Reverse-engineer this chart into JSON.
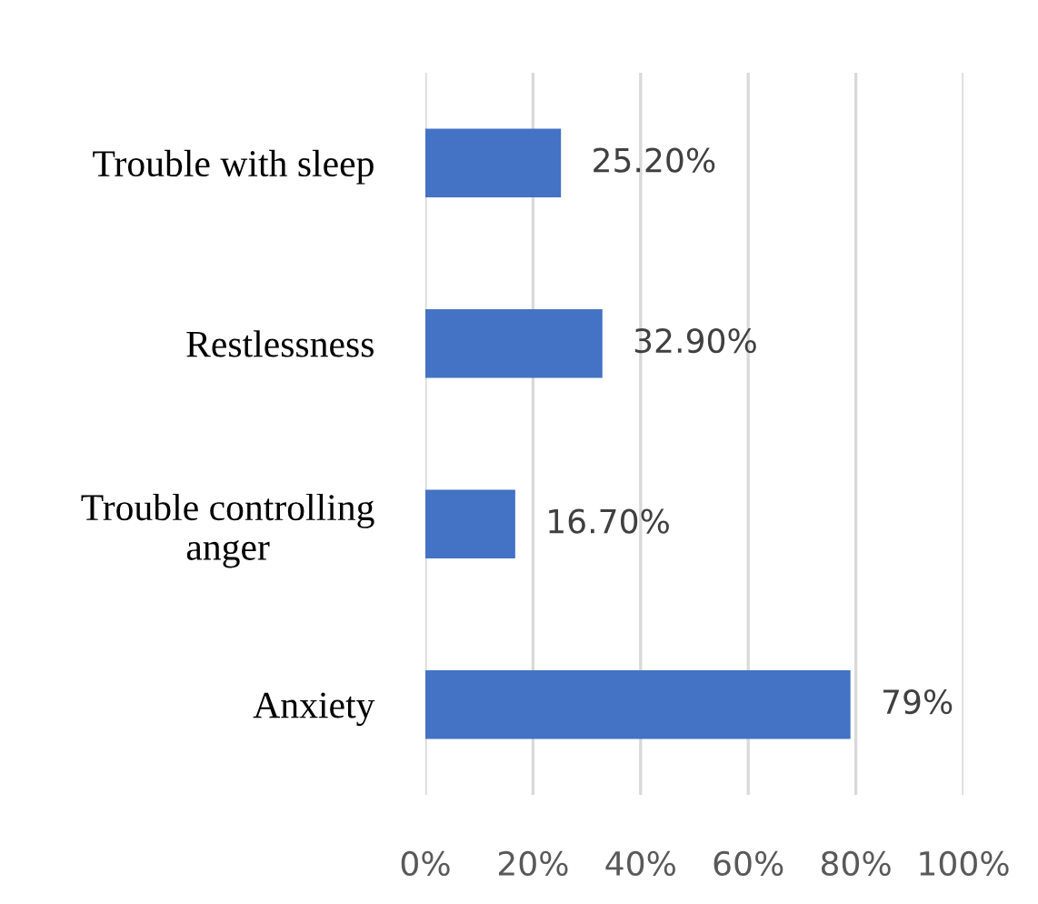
{
  "chart_data": {
    "type": "bar",
    "orientation": "horizontal",
    "categories": [
      "Trouble with sleep",
      "Restlessness",
      "Trouble controlling\nanger",
      "Anxiety"
    ],
    "values": [
      25.2,
      32.9,
      16.7,
      79
    ],
    "value_labels": [
      "25.20%",
      "32.90%",
      "16.70%",
      "79%"
    ],
    "color": "#4472c4",
    "xlim": [
      0,
      100
    ],
    "xticks": [
      {
        "value": 0,
        "label": "0%"
      },
      {
        "value": 20,
        "label": "20%"
      },
      {
        "value": 40,
        "label": "40%"
      },
      {
        "value": 60,
        "label": "60%"
      },
      {
        "value": 80,
        "label": "80%"
      },
      {
        "value": 100,
        "label": "100%"
      }
    ],
    "grid": "x",
    "legend": false
  }
}
